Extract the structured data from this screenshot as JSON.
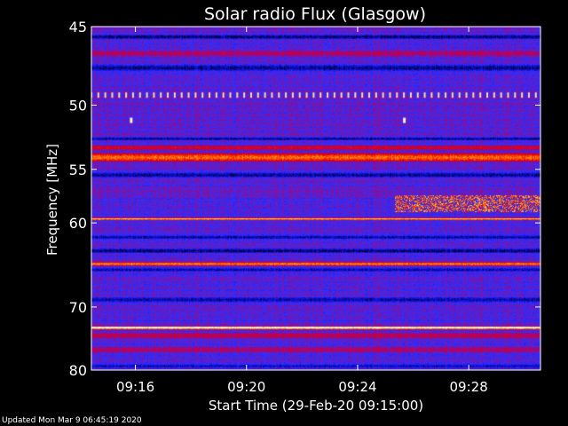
{
  "chart_data": {
    "type": "heatmap",
    "title": "Solar radio Flux (Glasgow)",
    "ylabel": "Frequency [MHz]",
    "xlabel": "Start Time (29-Feb-20 09:15:00)",
    "ylim": [
      45,
      80
    ],
    "y_scale": "reciprocal",
    "y_ticks": [
      45,
      50,
      55,
      60,
      70,
      80
    ],
    "xlim": [
      "09:14:25",
      "09:30:35"
    ],
    "x_ticks": [
      "09:16",
      "09:20",
      "09:24",
      "09:28"
    ],
    "colormap": [
      "#000000",
      "#1010e0",
      "#3030ff",
      "#b0006a",
      "#e00000",
      "#ff6000",
      "#ffd060",
      "#ffffff"
    ],
    "background_level": 0.32,
    "bands": [
      {
        "freq_MHz": 45.6,
        "width_MHz": 0.3,
        "level": 0.06
      },
      {
        "freq_MHz": 46.6,
        "width_MHz": 0.4,
        "level": 0.45
      },
      {
        "freq_MHz": 47.5,
        "width_MHz": 0.5,
        "level": 0.08
      },
      {
        "freq_MHz": 52.5,
        "width_MHz": 0.3,
        "level": 0.08
      },
      {
        "freq_MHz": 53.2,
        "width_MHz": 0.4,
        "level": 0.55
      },
      {
        "freq_MHz": 54.0,
        "width_MHz": 0.8,
        "level": 0.72
      },
      {
        "freq_MHz": 55.5,
        "width_MHz": 0.5,
        "level": 0.08
      },
      {
        "freq_MHz": 59.6,
        "width_MHz": 0.25,
        "level": 0.85
      },
      {
        "freq_MHz": 61.5,
        "width_MHz": 0.5,
        "level": 0.1
      },
      {
        "freq_MHz": 63.0,
        "width_MHz": 0.6,
        "level": 0.06
      },
      {
        "freq_MHz": 64.5,
        "width_MHz": 0.5,
        "level": 0.75
      },
      {
        "freq_MHz": 65.2,
        "width_MHz": 0.5,
        "level": 0.1
      },
      {
        "freq_MHz": 69.0,
        "width_MHz": 0.8,
        "level": 0.1
      },
      {
        "freq_MHz": 73.0,
        "width_MHz": 0.5,
        "level": 1.0
      },
      {
        "freq_MHz": 74.2,
        "width_MHz": 1.0,
        "level": 0.48
      },
      {
        "freq_MHz": 76.5,
        "width_MHz": 1.2,
        "level": 0.44
      },
      {
        "freq_MHz": 79.3,
        "width_MHz": 0.8,
        "level": 0.12
      }
    ],
    "interference": {
      "freq_MHz": 49.3,
      "level": 0.9,
      "start": "09:14:25",
      "end": "09:30:35",
      "interval_s": 15
    },
    "bursts": [
      {
        "time": "09:15:50",
        "freq_MHz": 51.1,
        "level": 0.95
      },
      {
        "time": "09:25:40",
        "freq_MHz": 51.1,
        "level": 0.95
      }
    ],
    "event": {
      "start": "09:25:20",
      "end": "09:30:35",
      "freq_low_MHz": 57.3,
      "freq_high_MHz": 58.9,
      "level": 0.85
    }
  },
  "footer": "Updated Mon Mar  9 06:45:19 2020"
}
